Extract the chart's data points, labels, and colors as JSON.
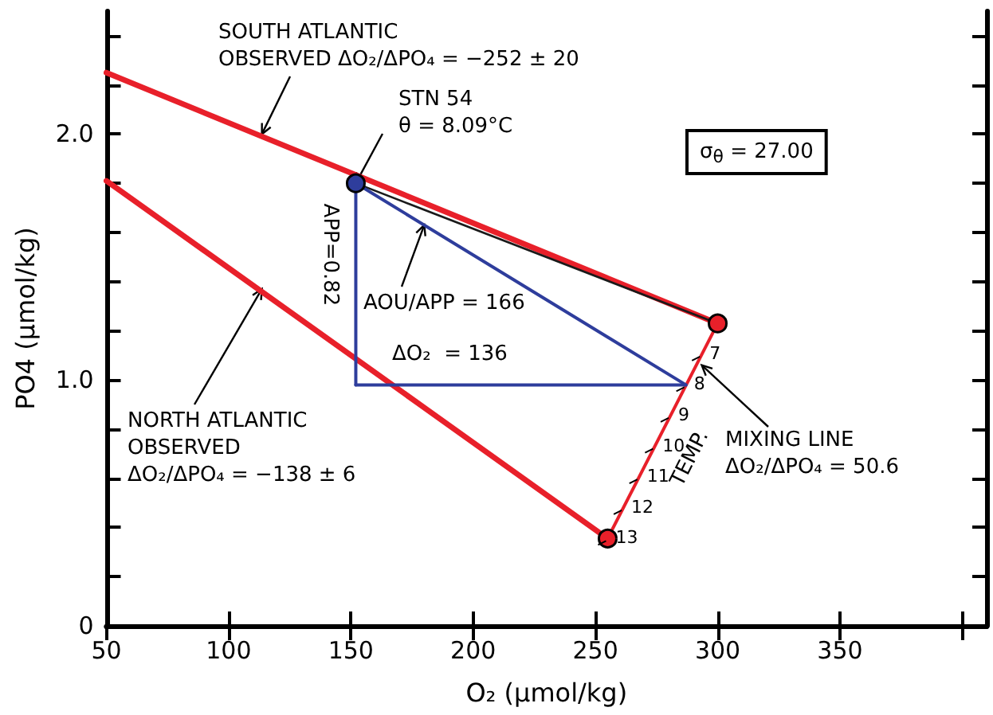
{
  "chart_data": {
    "type": "line",
    "xlabel": "O₂ (μmol/kg)",
    "ylabel": "PO4 (μmol/kg)",
    "xlim": [
      50,
      410
    ],
    "xticks": [
      50,
      100,
      150,
      200,
      250,
      300,
      350,
      {
        "value": 400,
        "label": null
      }
    ],
    "ylim": [
      0,
      2.5
    ],
    "yticks": [
      0,
      {
        "value": 0.2,
        "label": null
      },
      {
        "value": 0.4,
        "label": null
      },
      {
        "value": 0.6,
        "label": null
      },
      {
        "value": 0.8,
        "label": null
      },
      {
        "value": 1,
        "label": "1.0"
      },
      {
        "value": 1.2,
        "label": null
      },
      {
        "value": 1.4,
        "label": null
      },
      {
        "value": 1.6,
        "label": null
      },
      {
        "value": 1.8,
        "label": null
      },
      {
        "value": 2,
        "label": "2.0"
      },
      {
        "value": 2.2,
        "label": null
      },
      {
        "value": 2.4,
        "label": null
      }
    ],
    "grid": false,
    "marker": "none",
    "series": [
      {
        "color": "#e8202a",
        "x": [
          50,
          300
        ],
        "values": [
          2.25,
          1.23
        ]
      },
      {
        "color": "#e8202a",
        "x": [
          50,
          255
        ],
        "values": [
          1.81,
          0.355
        ]
      },
      {
        "color": "#e8202a",
        "x": [
          255,
          300
        ],
        "values": [
          0.355,
          1.23
        ]
      },
      {
        "color": "#1a1a1a",
        "x": [
          152,
          300
        ],
        "values": [
          1.8,
          1.23
        ]
      },
      {
        "color": "#2e3d9c",
        "x": [
          152,
          152
        ],
        "values": [
          1.8,
          0.98
        ]
      },
      {
        "color": "#2e3d9c",
        "x": [
          152,
          287
        ],
        "values": [
          0.98,
          0.98
        ]
      },
      {
        "color": "#2e3d9c",
        "x": [
          152,
          287
        ],
        "values": [
          1.8,
          0.98
        ]
      },
      {
        "type": "scatter",
        "marker": "circle",
        "color": "#2e3d9c",
        "x": [
          152
        ],
        "values": [
          1.8
        ]
      },
      {
        "type": "scatter",
        "marker": "circle",
        "color": "#e8202a",
        "x": [
          300,
          255
        ],
        "values": [
          1.23,
          0.355
        ]
      }
    ],
    "annotations": [
      {
        "text": "SOUTH ATLANTIC\nOBSERVED ΔO₂/ΔPO₄ = −252 ± 20",
        "x": 113.6,
        "y": 2.0
      },
      {
        "text": "STN 54\nθ = 8.09°C",
        "x": 152,
        "y": 1.8
      },
      "APP=0.82",
      {
        "text": "AOU/APP = 166",
        "x": 180,
        "y": 1.63
      },
      "ΔO₂  = 136",
      {
        "text": "MIXING LINE\nΔO₂/ΔPO₄ = 50.6",
        "x": 293.5,
        "y": 1.06
      },
      {
        "text": "NORTH ATLANTIC\nOBSERVED\nΔO₂/ΔPO₄ = −138 ± 6",
        "x": 113.6,
        "y": 1.37
      },
      "σ$_{θ}$ = 27.00",
      "TEMP.",
      {
        "text": "7",
        "x": 293.4,
        "y": 1.105
      },
      {
        "text": "8",
        "x": 287,
        "y": 0.98
      },
      {
        "text": "9",
        "x": 280.6,
        "y": 0.855
      },
      {
        "text": "10",
        "x": 274.2,
        "y": 0.73
      },
      {
        "text": "11",
        "x": 267.8,
        "y": 0.605
      },
      {
        "text": "12",
        "x": 261.4,
        "y": 0.48
      },
      {
        "text": "13",
        "x": 255,
        "y": 0.355
      }
    ]
  }
}
